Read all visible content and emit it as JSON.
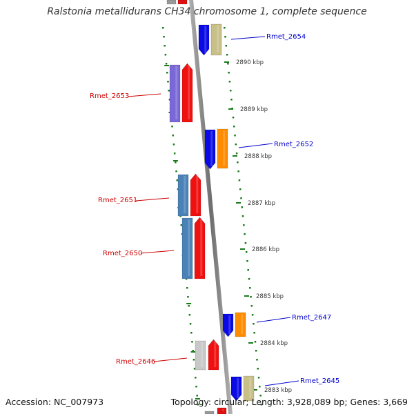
{
  "title": "Ralstonia metallidurans CH34 chromosome 1, complete sequence",
  "accession": "Accession: NC_007973",
  "summary": "Topology: circular; Length: 3,928,089 bp; Genes: 3,669",
  "colors": {
    "backbone": "#8a8a8a",
    "tick": "#1a7a1a",
    "forward_label": "#0000cc",
    "reverse_label": "#cc0000"
  },
  "ticks": [
    {
      "label": "2890 kbp"
    },
    {
      "label": "2889 kbp"
    },
    {
      "label": "2888 kbp"
    },
    {
      "label": "2887 kbp"
    },
    {
      "label": "2886 kbp"
    },
    {
      "label": "2885 kbp"
    },
    {
      "label": "2884 kbp"
    },
    {
      "label": "2883 kbp"
    }
  ],
  "genes": [
    {
      "label": "Rmet_2654",
      "strand": "+"
    },
    {
      "label": "Rmet_2653",
      "strand": "-"
    },
    {
      "label": "Rmet_2652",
      "strand": "+"
    },
    {
      "label": "Rmet_2651",
      "strand": "-"
    },
    {
      "label": "Rmet_2650",
      "strand": "-"
    },
    {
      "label": "Rmet_2647",
      "strand": "+"
    },
    {
      "label": "Rmet_2646",
      "strand": "-"
    },
    {
      "label": "Rmet_2645",
      "strand": "+"
    }
  ]
}
